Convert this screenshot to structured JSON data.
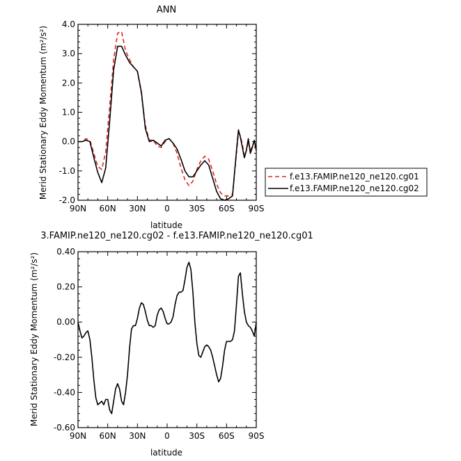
{
  "chart_data": [
    {
      "type": "line",
      "title": "ANN",
      "xlabel": "latitude",
      "ylabel": "Merid Stationary Eddy Momentum (m²/s²)",
      "xlim": [
        90,
        -90
      ],
      "ylim": [
        -2.0,
        4.0
      ],
      "x_ticks": [
        90,
        60,
        30,
        0,
        -30,
        -60,
        -90
      ],
      "x_tick_labels": [
        "90N",
        "60N",
        "30N",
        "0",
        "30S",
        "60S",
        "90S"
      ],
      "y_ticks": [
        -2.0,
        -1.0,
        0.0,
        1.0,
        2.0,
        3.0,
        4.0
      ],
      "y_tick_labels": [
        "-2.0",
        "-1.0",
        "0.0",
        "1.0",
        "2.0",
        "3.0",
        "4.0"
      ],
      "legend_position": "right",
      "x": [
        90,
        86,
        82,
        78,
        74,
        70,
        66,
        62,
        58,
        54,
        50,
        46,
        42,
        38,
        34,
        30,
        26,
        22,
        18,
        14,
        10,
        6,
        2,
        -2,
        -6,
        -10,
        -14,
        -18,
        -22,
        -26,
        -30,
        -34,
        -38,
        -42,
        -46,
        -50,
        -54,
        -58,
        -62,
        -66,
        -70,
        -72,
        -74,
        -76,
        -78,
        -80,
        -82,
        -84,
        -86,
        -88,
        -90
      ],
      "series": [
        {
          "name": "f.e13.FAMIP.ne120_ne120.cg01",
          "color": "#e0241c",
          "dash": "dashed",
          "values": [
            0.0,
            0.0,
            0.1,
            0.05,
            -0.4,
            -0.85,
            -0.95,
            -0.35,
            1.2,
            2.8,
            3.7,
            3.75,
            3.1,
            2.8,
            2.55,
            2.4,
            1.65,
            0.55,
            0.05,
            0.05,
            -0.15,
            -0.2,
            0.0,
            0.1,
            -0.05,
            -0.4,
            -0.9,
            -1.3,
            -1.5,
            -1.35,
            -0.95,
            -0.65,
            -0.5,
            -0.6,
            -1.0,
            -1.45,
            -1.75,
            -1.85,
            -1.85,
            -1.8,
            -0.4,
            0.3,
            0.2,
            -0.1,
            -0.5,
            -0.3,
            0.0,
            -0.3,
            -0.15,
            0.0,
            -0.3
          ]
        },
        {
          "name": "f.e13.FAMIP.ne120_ne120.cg02",
          "color": "#000000",
          "dash": "solid",
          "values": [
            0.0,
            0.0,
            0.05,
            0.0,
            -0.55,
            -1.05,
            -1.4,
            -0.9,
            0.7,
            2.45,
            3.25,
            3.25,
            2.95,
            2.7,
            2.55,
            2.4,
            1.7,
            0.45,
            0.0,
            0.05,
            -0.05,
            -0.15,
            0.05,
            0.1,
            -0.05,
            -0.25,
            -0.6,
            -1.0,
            -1.2,
            -1.2,
            -1.0,
            -0.8,
            -0.65,
            -0.8,
            -1.25,
            -1.7,
            -1.95,
            -2.0,
            -1.95,
            -1.85,
            -0.3,
            0.4,
            0.15,
            -0.2,
            -0.55,
            -0.3,
            0.1,
            -0.4,
            -0.2,
            0.05,
            -0.3
          ]
        }
      ]
    },
    {
      "type": "line",
      "title": "3.FAMIP.ne120_ne120.cg02 - f.e13.FAMIP.ne120_ne120.cg01",
      "xlabel": "latitude",
      "ylabel": "Merid Stationary Eddy Momentum (m²/s²)",
      "xlim": [
        90,
        -90
      ],
      "ylim": [
        -0.6,
        0.4
      ],
      "x_ticks": [
        90,
        60,
        30,
        0,
        -30,
        -60,
        -90
      ],
      "x_tick_labels": [
        "90N",
        "60N",
        "30N",
        "0",
        "30S",
        "60S",
        "90S"
      ],
      "y_ticks": [
        -0.6,
        -0.4,
        -0.2,
        0.0,
        0.2,
        0.4
      ],
      "y_tick_labels": [
        "-0.60",
        "-0.40",
        "-0.20",
        "0.00",
        "0.20",
        "0.40"
      ],
      "x": [
        90,
        88,
        86,
        84,
        82,
        80,
        78,
        76,
        74,
        72,
        70,
        68,
        66,
        64,
        62,
        60,
        58,
        56,
        54,
        52,
        50,
        48,
        46,
        44,
        42,
        40,
        38,
        36,
        34,
        32,
        30,
        28,
        26,
        24,
        22,
        20,
        18,
        16,
        14,
        12,
        10,
        8,
        6,
        4,
        2,
        0,
        -2,
        -4,
        -6,
        -8,
        -10,
        -12,
        -14,
        -16,
        -18,
        -20,
        -22,
        -24,
        -26,
        -28,
        -30,
        -32,
        -34,
        -36,
        -38,
        -40,
        -42,
        -44,
        -46,
        -48,
        -50,
        -52,
        -54,
        -56,
        -58,
        -60,
        -62,
        -64,
        -66,
        -68,
        -70,
        -72,
        -74,
        -76,
        -78,
        -80,
        -82,
        -84,
        -86,
        -88,
        -90
      ],
      "series": [
        {
          "name": "",
          "color": "#000000",
          "dash": "solid",
          "values": [
            0.0,
            -0.05,
            -0.09,
            -0.08,
            -0.06,
            -0.05,
            -0.1,
            -0.2,
            -0.33,
            -0.43,
            -0.47,
            -0.46,
            -0.45,
            -0.47,
            -0.44,
            -0.44,
            -0.5,
            -0.52,
            -0.45,
            -0.38,
            -0.35,
            -0.38,
            -0.45,
            -0.47,
            -0.4,
            -0.3,
            -0.15,
            -0.04,
            -0.02,
            -0.02,
            0.02,
            0.08,
            0.11,
            0.1,
            0.06,
            0.01,
            -0.02,
            -0.02,
            -0.03,
            -0.02,
            0.04,
            0.07,
            0.08,
            0.06,
            0.02,
            -0.01,
            -0.01,
            0.0,
            0.03,
            0.1,
            0.15,
            0.17,
            0.17,
            0.18,
            0.24,
            0.31,
            0.34,
            0.3,
            0.17,
            0.0,
            -0.12,
            -0.19,
            -0.2,
            -0.17,
            -0.14,
            -0.13,
            -0.14,
            -0.16,
            -0.2,
            -0.25,
            -0.3,
            -0.34,
            -0.32,
            -0.25,
            -0.16,
            -0.11,
            -0.11,
            -0.11,
            -0.1,
            -0.05,
            0.1,
            0.26,
            0.28,
            0.16,
            0.06,
            0.0,
            -0.02,
            -0.03,
            -0.05,
            -0.08,
            0.0
          ]
        }
      ]
    }
  ]
}
